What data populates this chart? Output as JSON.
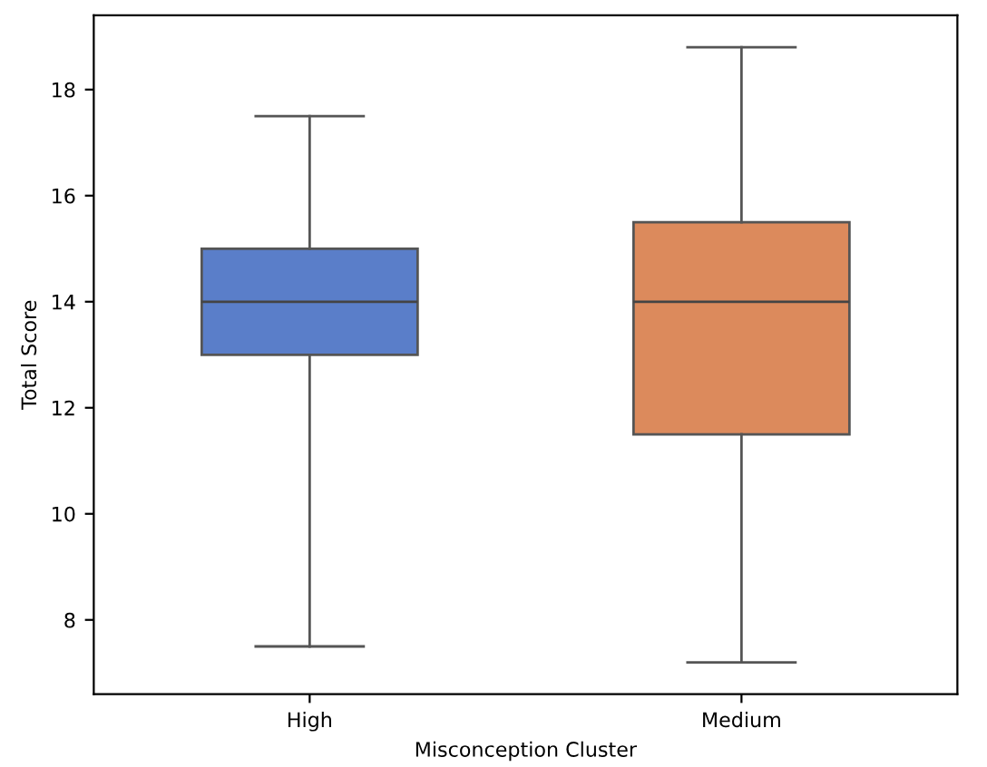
{
  "chart_data": {
    "type": "box",
    "xlabel": "Misconception Cluster",
    "ylabel": "Total Score",
    "categories": [
      "High",
      "Medium"
    ],
    "colors": [
      "#5a7ec9",
      "#dc8a5c"
    ],
    "boxes": [
      {
        "low": 7.5,
        "q1": 13,
        "median": 14,
        "q3": 15,
        "high": 17.5
      },
      {
        "low": 7.2,
        "q1": 11.5,
        "median": 14,
        "q3": 15.5,
        "high": 18.8
      }
    ],
    "ylim": [
      6.6,
      19.4
    ],
    "yticks": [
      8,
      10,
      12,
      14,
      16,
      18
    ],
    "grid": false,
    "legend": false
  }
}
